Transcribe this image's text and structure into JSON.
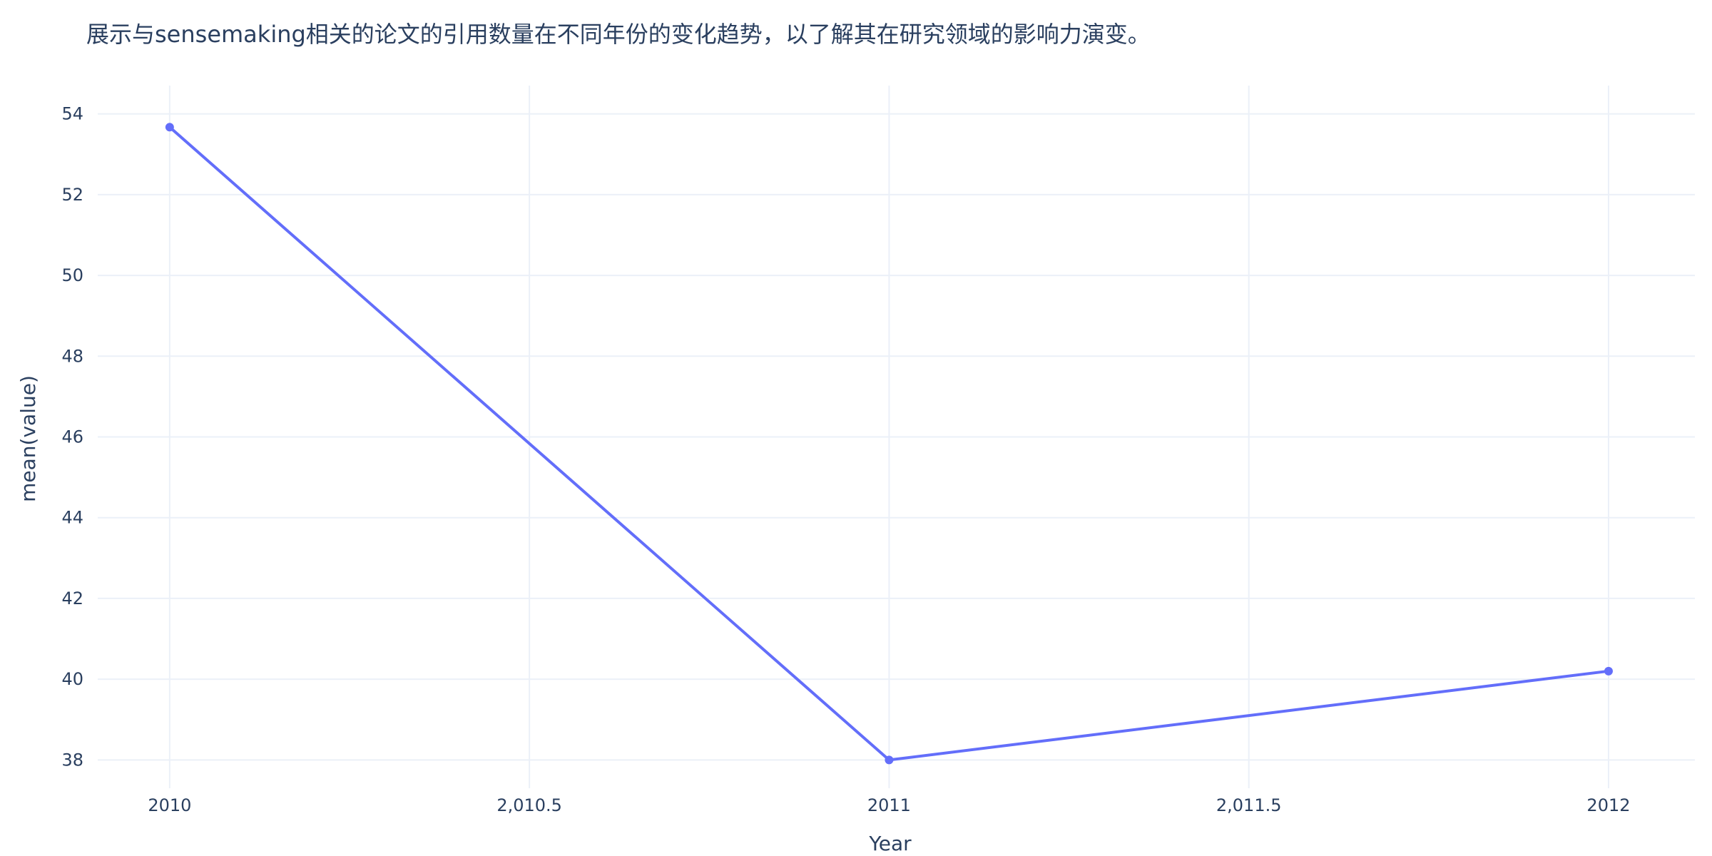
{
  "chart_data": {
    "type": "line",
    "title": "展示与sensemaking相关的论文的引用数量在不同年份的变化趋势，以了解其在研究领域的影响力演变。",
    "xlabel": "Year",
    "ylabel": "mean(value)",
    "x": [
      2010,
      2011,
      2012
    ],
    "series": [
      {
        "values": [
          53.67,
          38.0,
          40.2
        ],
        "color": "#636efa"
      }
    ],
    "xlim": [
      2009.9,
      2012.12
    ],
    "ylim": [
      37.3,
      54.7
    ],
    "x_ticks": [
      2010,
      2010.5,
      2011,
      2011.5,
      2012
    ],
    "x_tick_labels": [
      "2010",
      "2,010.5",
      "2011",
      "2,011.5",
      "2012"
    ],
    "y_ticks": [
      38,
      40,
      42,
      44,
      46,
      48,
      50,
      52,
      54
    ],
    "y_tick_labels": [
      "38",
      "40",
      "42",
      "44",
      "46",
      "48",
      "50",
      "52",
      "54"
    ],
    "grid": true,
    "legend": "none",
    "background_color": "#ffffff",
    "grid_color": "#ebf0f8",
    "text_color": "#2a3f5f"
  }
}
